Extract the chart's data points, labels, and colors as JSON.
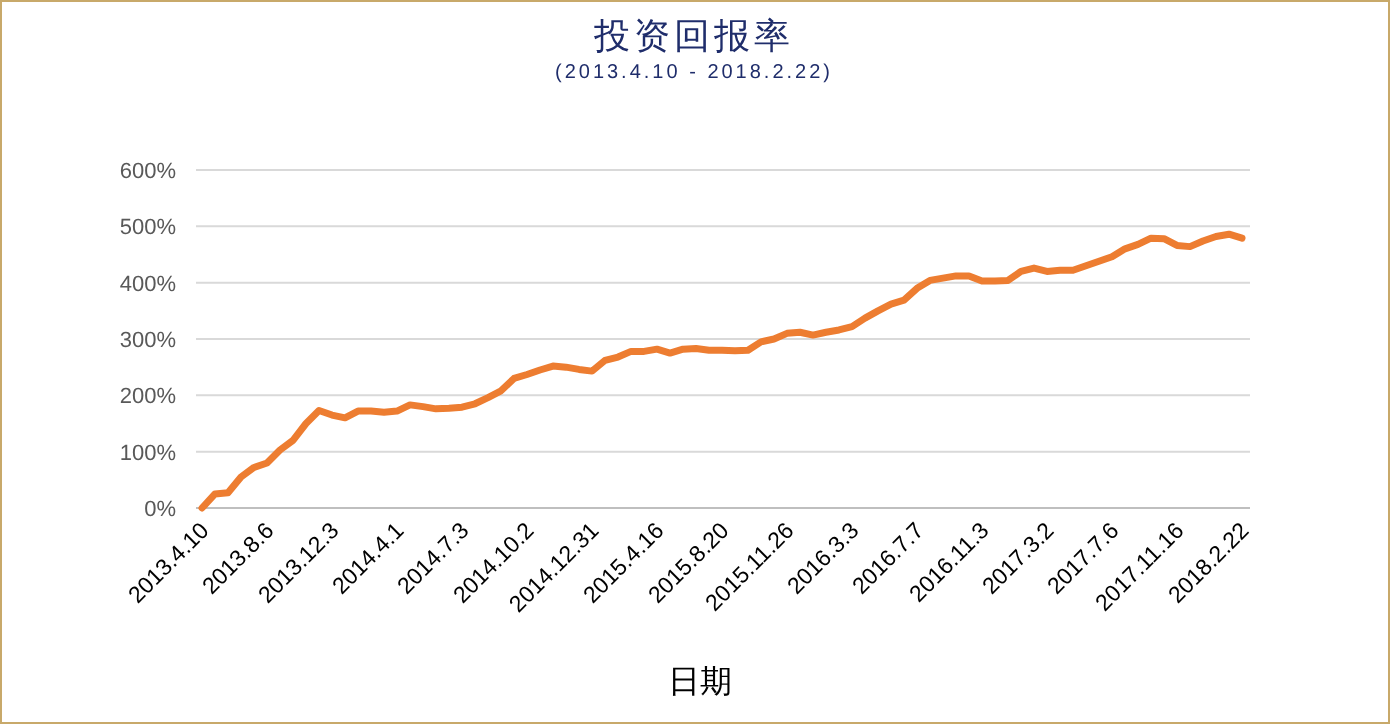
{
  "chart_data": {
    "type": "line",
    "title": "投资回报率",
    "subtitle": "(2013.4.10 - 2018.2.22)",
    "xlabel": "日期",
    "categories": [
      "2013.4.10",
      null,
      null,
      null,
      null,
      "2013.8.6",
      null,
      null,
      null,
      null,
      "2013.12.3",
      null,
      null,
      null,
      null,
      "2014.4.1",
      null,
      null,
      null,
      null,
      "2014.7.3",
      null,
      null,
      null,
      null,
      "2014.10.2",
      null,
      null,
      null,
      null,
      "2014.12.31",
      null,
      null,
      null,
      null,
      "2015.4.16",
      null,
      null,
      null,
      null,
      "2015.8.20",
      null,
      null,
      null,
      null,
      "2015.11.26",
      null,
      null,
      null,
      null,
      "2016.3.3",
      null,
      null,
      null,
      null,
      "2016.7.7",
      null,
      null,
      null,
      null,
      "2016.11.3",
      null,
      null,
      null,
      null,
      "2017.3.2",
      null,
      null,
      null,
      null,
      "2017.7.6",
      null,
      null,
      null,
      null,
      "2017.11.16",
      null,
      null,
      null,
      null,
      "2018.2.22"
    ],
    "series": [
      {
        "color": "#ed7d31",
        "values": [
          0,
          25,
          27,
          55,
          72,
          80,
          103,
          120,
          150,
          173,
          165,
          160,
          172,
          172,
          170,
          172,
          183,
          180,
          176,
          177,
          179,
          185,
          196,
          208,
          230,
          237,
          245,
          252,
          250,
          246,
          243,
          262,
          268,
          278,
          278,
          282,
          275,
          282,
          283,
          280,
          280,
          279,
          280,
          295,
          300,
          310,
          312,
          307,
          312,
          316,
          322,
          337,
          350,
          362,
          369,
          390,
          404,
          408,
          412,
          412,
          403,
          403,
          404,
          420,
          426,
          420,
          422,
          422,
          430,
          438,
          446,
          460,
          468,
          479,
          478,
          466,
          464,
          474,
          482,
          486,
          479
        ]
      }
    ],
    "ylim": [
      0,
      600
    ],
    "yticks": [
      {
        "value": 0,
        "label": "0%"
      },
      {
        "value": 100,
        "label": "100%"
      },
      {
        "value": 200,
        "label": "200%"
      },
      {
        "value": 300,
        "label": "300%"
      },
      {
        "value": 400,
        "label": "400%"
      },
      {
        "value": 500,
        "label": "500%"
      },
      {
        "value": 600,
        "label": "600%"
      }
    ],
    "grid": "y",
    "marker": "none",
    "line_style": "solid"
  }
}
